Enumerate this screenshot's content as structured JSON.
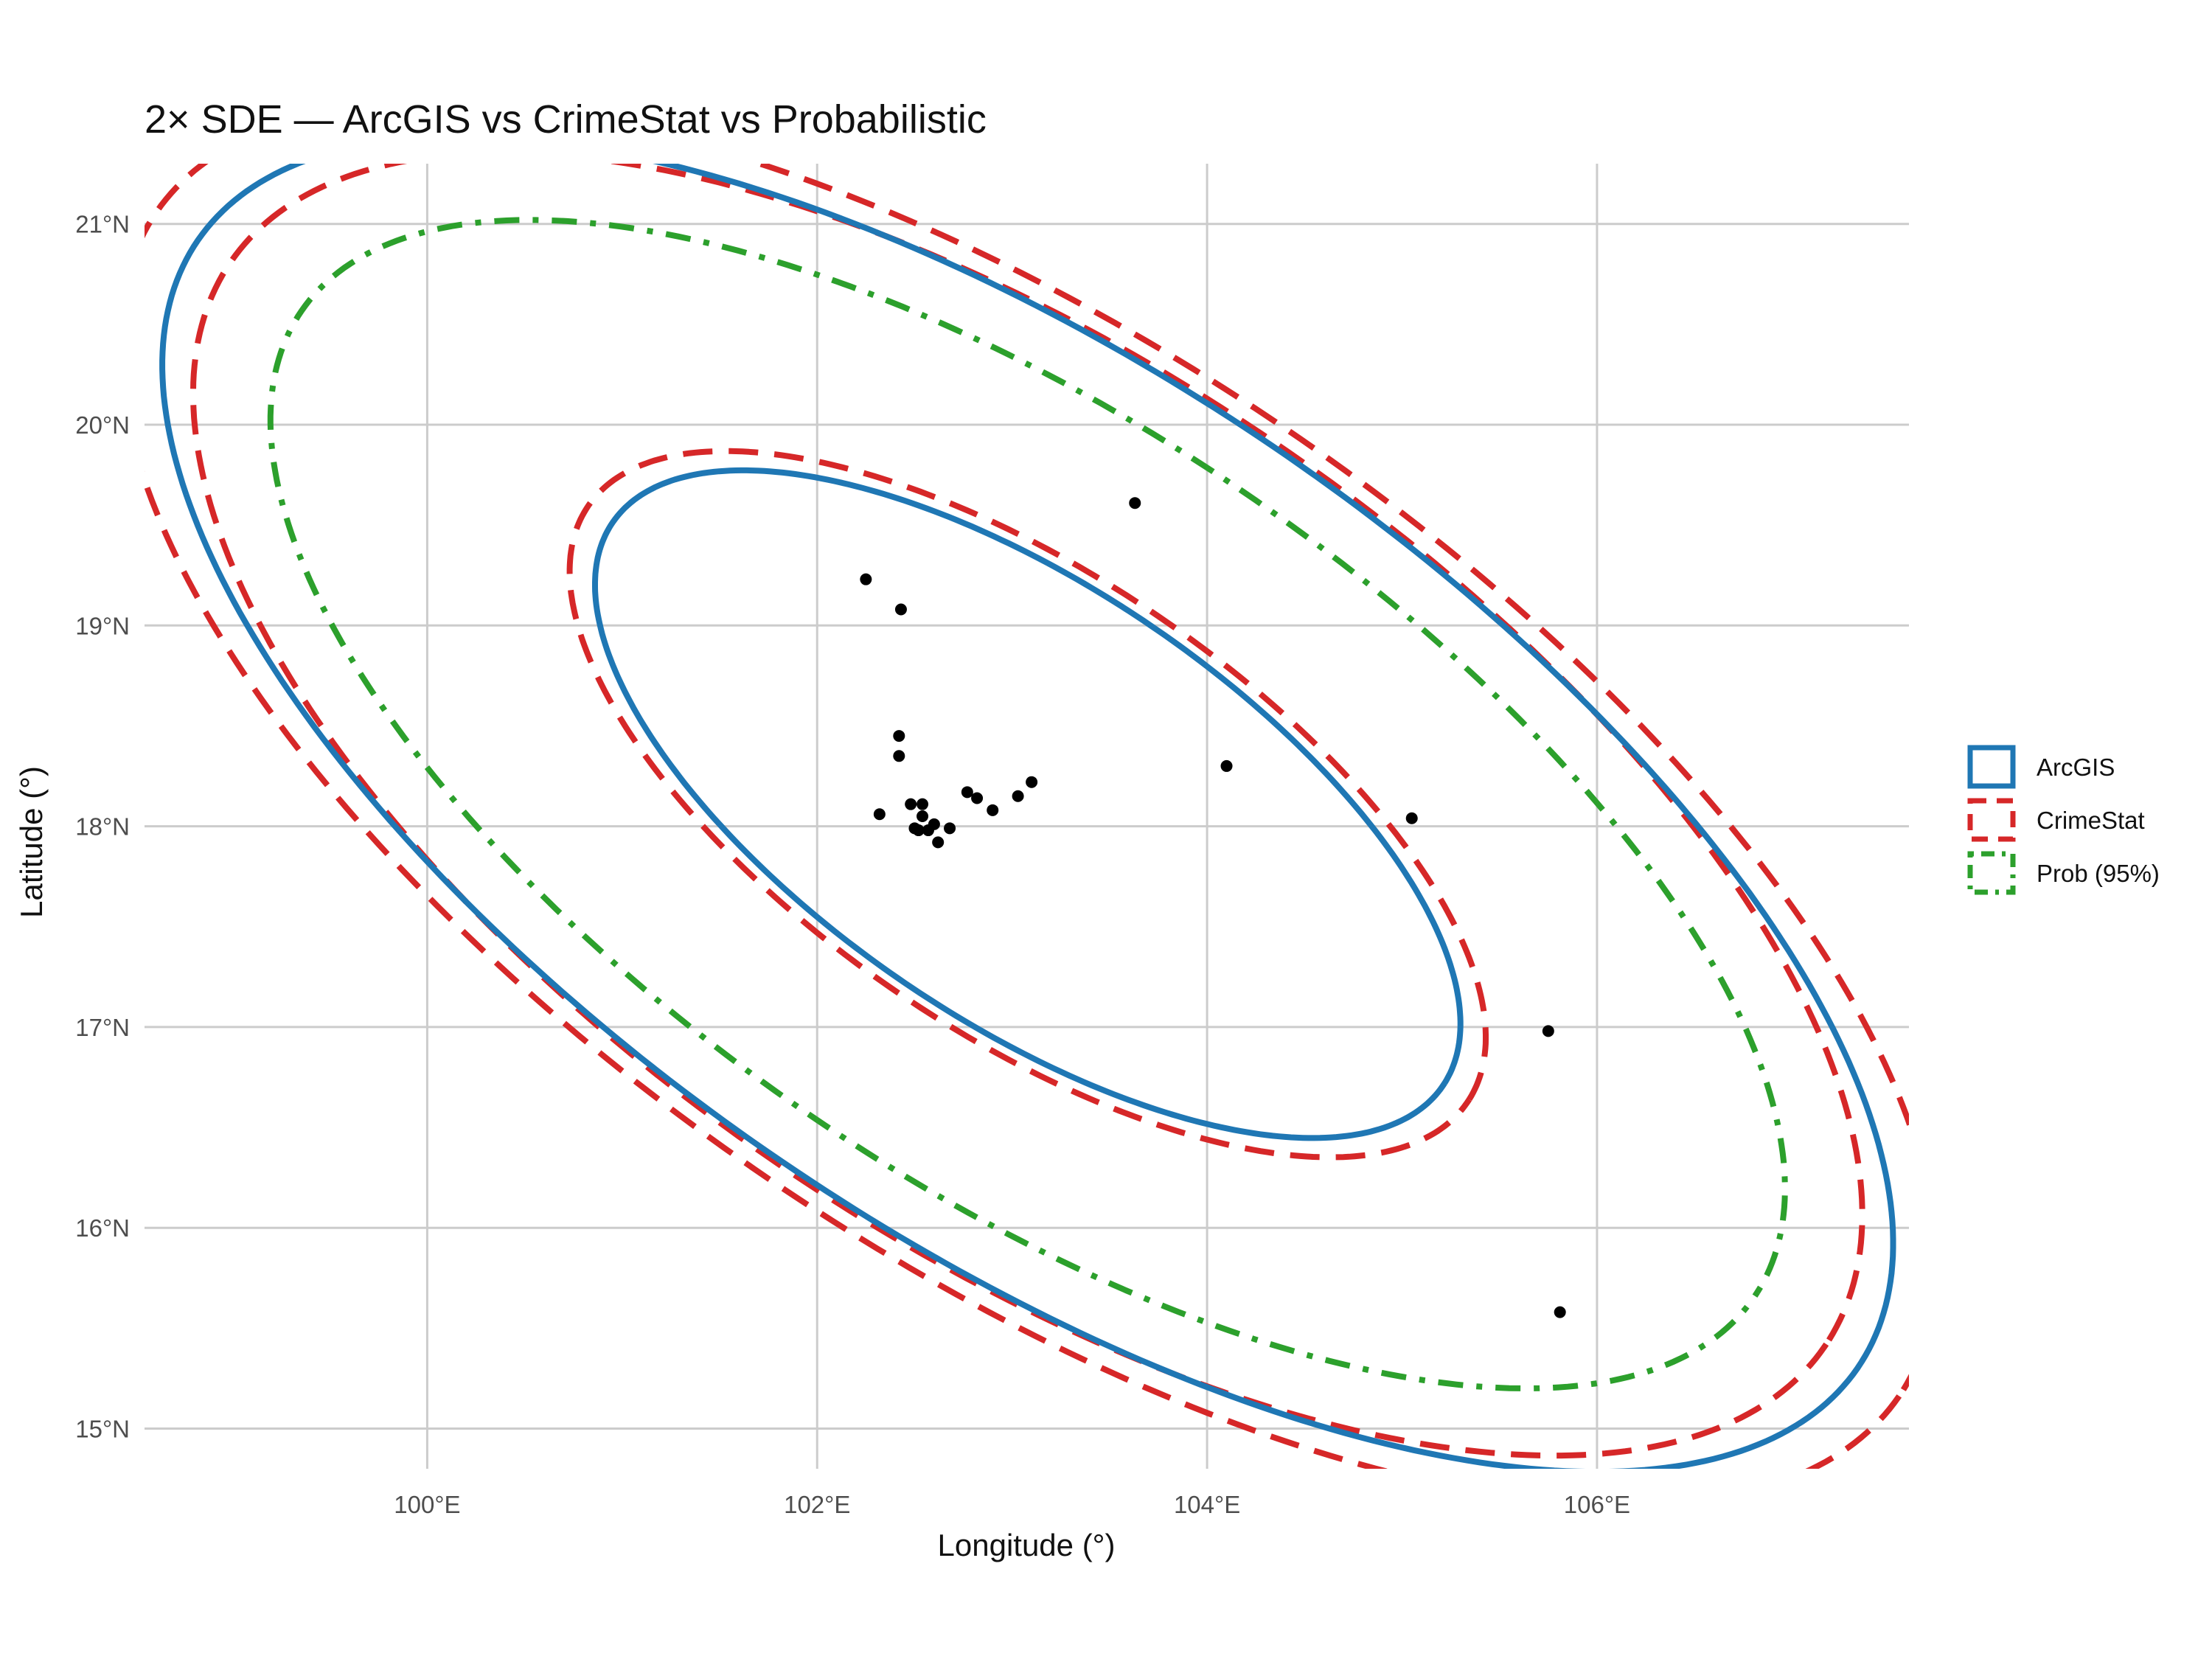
{
  "chart_data": {
    "type": "scatter",
    "title": "2× SDE — ArcGIS vs CrimeStat vs Probabilistic",
    "xlabel": "Longitude (°)",
    "ylabel": "Latitude (°)",
    "xlim": [
      98.55,
      107.6
    ],
    "ylim": [
      14.8,
      21.3
    ],
    "x_ticks": [
      100,
      102,
      104,
      106
    ],
    "x_tick_labels": [
      "100°E",
      "102°E",
      "104°E",
      "106°E"
    ],
    "y_ticks": [
      15,
      16,
      17,
      18,
      19,
      20,
      21
    ],
    "y_tick_labels": [
      "15°N",
      "16°N",
      "17°N",
      "18°N",
      "19°N",
      "20°N",
      "21°N"
    ],
    "grid": true,
    "legend_position": "right",
    "legend": [
      {
        "key": "arcgis",
        "label": "ArcGIS",
        "color": "#1f77b4",
        "dash": "solid"
      },
      {
        "key": "crimestat",
        "label": "CrimeStat",
        "color": "#d62728",
        "dash": "dashed"
      },
      {
        "key": "prob",
        "label": "Prob (95%)",
        "color": "#2ca02c",
        "dash": "dotdash"
      }
    ],
    "ellipses": [
      {
        "series": "crimestat",
        "cx": 103.08,
        "cy": 18.11,
        "a": 4.9,
        "b": 2.2,
        "angle_deg": -33
      },
      {
        "series": "crimestat",
        "cx": 103.08,
        "cy": 18.11,
        "a": 2.7,
        "b": 1.15,
        "angle_deg": -33
      },
      {
        "series": "arcgis",
        "cx": 103.08,
        "cy": 18.11,
        "a": 2.55,
        "b": 1.09,
        "angle_deg": -33
      },
      {
        "series": "crimestat",
        "cx": 103.08,
        "cy": 18.11,
        "a": 2.55,
        "b": 1.09,
        "angle_deg": -33,
        "scale": 2.1
      },
      {
        "series": "arcgis",
        "cx": 103.08,
        "cy": 18.11,
        "a": 2.55,
        "b": 1.09,
        "angle_deg": -33,
        "scale": 2.0
      },
      {
        "series": "prob",
        "cx": 103.08,
        "cy": 18.11,
        "a": 2.55,
        "b": 1.09,
        "angle_deg": -33,
        "scale": 1.75
      }
    ],
    "points": [
      [
        102.25,
        19.23
      ],
      [
        102.43,
        19.08
      ],
      [
        103.63,
        19.61
      ],
      [
        104.1,
        18.3
      ],
      [
        105.05,
        18.04
      ],
      [
        105.75,
        16.98
      ],
      [
        105.81,
        15.58
      ],
      [
        102.42,
        18.45
      ],
      [
        102.42,
        18.35
      ],
      [
        102.32,
        18.06
      ],
      [
        102.48,
        18.11
      ],
      [
        102.54,
        18.11
      ],
      [
        102.54,
        18.05
      ],
      [
        102.5,
        17.99
      ],
      [
        102.52,
        17.98
      ],
      [
        102.57,
        17.98
      ],
      [
        102.6,
        18.01
      ],
      [
        102.62,
        17.92
      ],
      [
        102.68,
        17.99
      ],
      [
        102.77,
        18.17
      ],
      [
        102.82,
        18.14
      ],
      [
        102.9,
        18.08
      ],
      [
        103.03,
        18.15
      ],
      [
        103.1,
        18.22
      ]
    ]
  }
}
